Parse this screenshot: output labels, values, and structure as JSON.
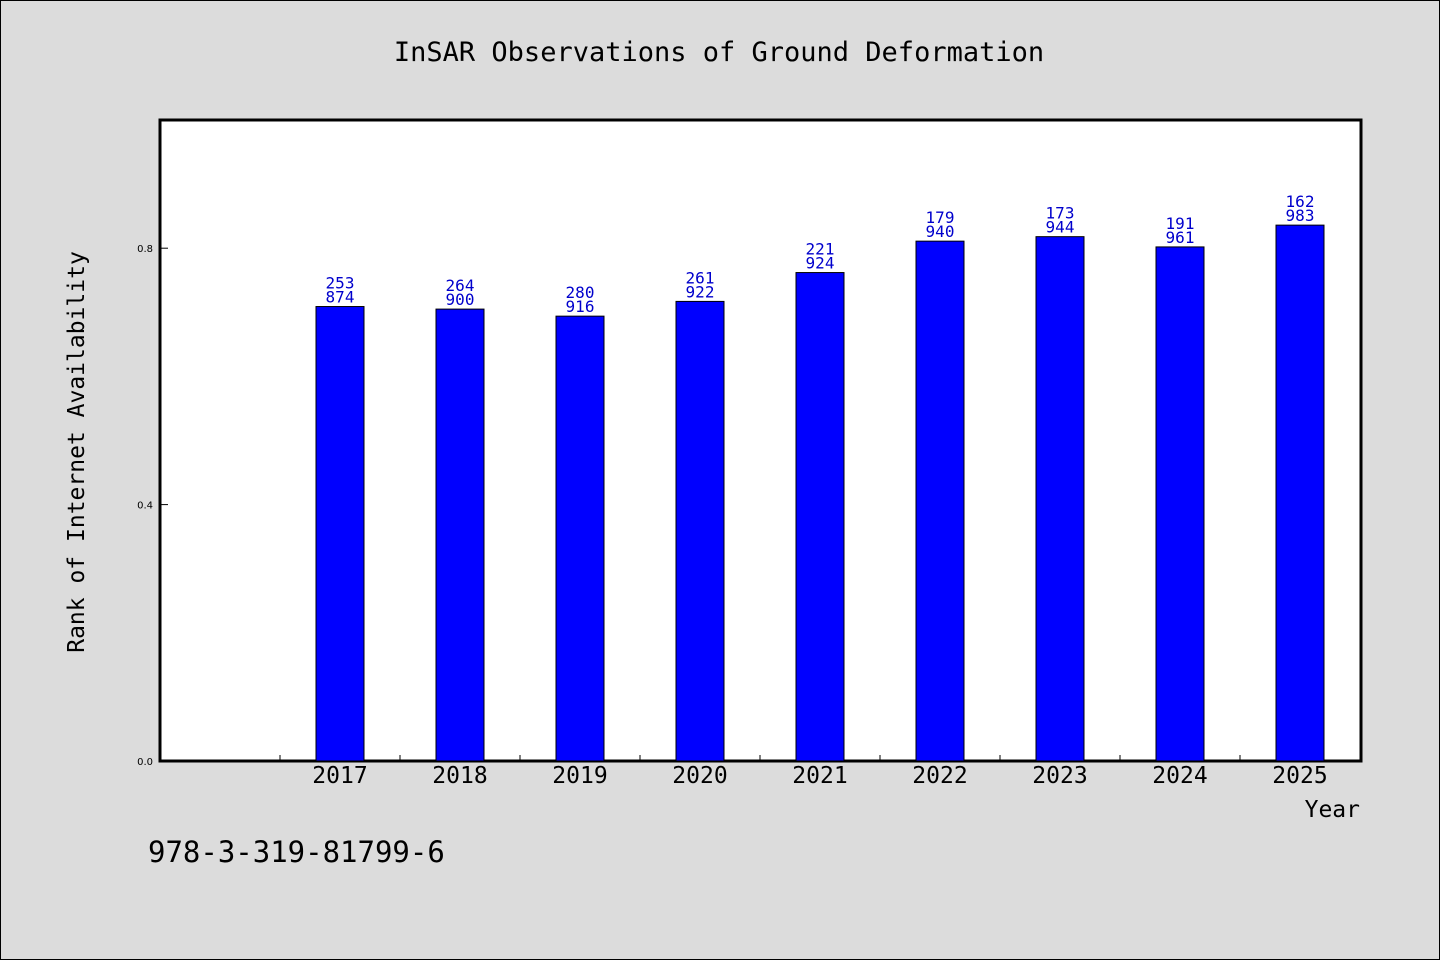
{
  "chart_data": {
    "type": "bar",
    "title": "InSAR Observations of Ground Deformation",
    "xlabel": "Year",
    "ylabel": "Rank of Internet Availability",
    "categories": [
      "2017",
      "2018",
      "2019",
      "2020",
      "2021",
      "2022",
      "2023",
      "2024",
      "2025"
    ],
    "values": [
      0.709,
      0.705,
      0.694,
      0.717,
      0.762,
      0.811,
      0.818,
      0.802,
      0.836
    ],
    "labels_top": [
      "253",
      "264",
      "280",
      "261",
      "221",
      "179",
      "173",
      "191",
      "162"
    ],
    "labels_bottom": [
      "874",
      "900",
      "916",
      "922",
      "924",
      "940",
      "944",
      "961",
      "983"
    ],
    "ylim": [
      0,
      1.0
    ],
    "yticks": [
      0.0,
      0.4,
      0.8
    ],
    "ytick_labels": [
      "0.0",
      "0.4",
      "0.8"
    ],
    "bar_color": "#0000ff",
    "label_color": "#0000cc",
    "background": "#dcdcdc",
    "plot_background": "#ffffff",
    "grid": false
  },
  "footer": {
    "isbn": "978-3-319-81799-6"
  }
}
